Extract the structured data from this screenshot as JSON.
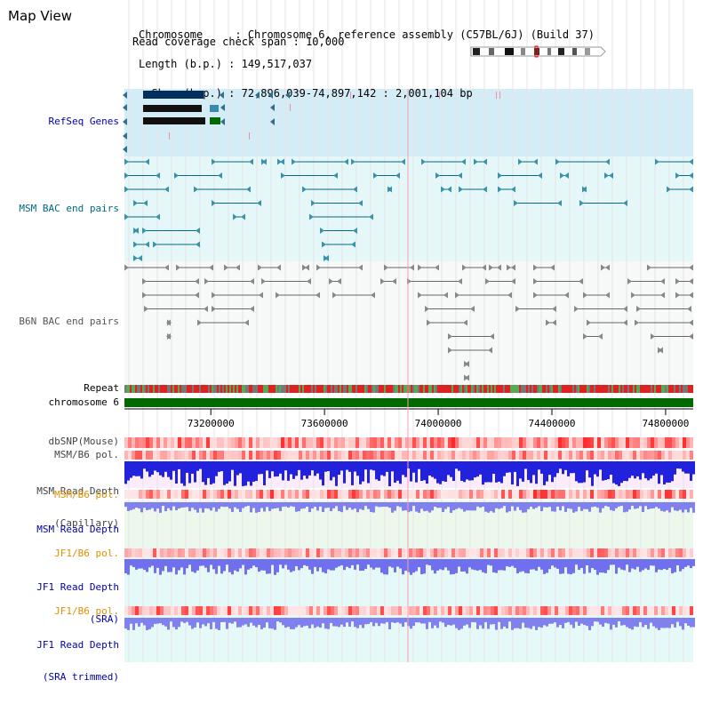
{
  "app": {
    "title": "Map View"
  },
  "info": {
    "chromosome_line": "Chromosome     : Chromosome 6, reference assembly (C57BL/6J) (Build 37)",
    "length_line": "Length (b.p.) : 149,517,037",
    "show_line": "  Show (b.p.) : 72,896,039-74,897,142 : 2,001,104 bp",
    "coverage_line": "Read coverage check span : 10,000"
  },
  "tracks": {
    "refseq": "RefSeq Genes",
    "msm_bac": "MSM BAC end pairs",
    "b6n_bac": "B6N BAC end pairs",
    "repeat": "Repeat",
    "chromosome": "chromosome 6",
    "dbsnp": "dbSNP(Mouse)",
    "msm_b6_pol_1": "MSM/B6 pol.",
    "msm_depth_cap_1": "MSM Read Depth",
    "msm_depth_cap_2": "(Capillary)",
    "msm_b6_pol_2": "MSM/B6 pol.",
    "msm_depth_sra": "MSM Read Depth",
    "msm_depth_sra_2": "(SRA)",
    "jf1_b6_pol_1": "JF1/B6 pol.",
    "jf1_depth_1": "JF1 Read Depth",
    "jf1_depth_1b": "(SRA)",
    "jf1_b6_pol_2": "JF1/B6 pol.",
    "jf1_depth_2": "JF1 Read Depth",
    "jf1_depth_2b": "(SRA trimmed)"
  },
  "axis": {
    "ticks": [
      "73200000",
      "73600000",
      "74000000",
      "74400000",
      "74800000"
    ],
    "tick_values": [
      73200000,
      73600000,
      74000000,
      74400000,
      74800000
    ],
    "range": [
      72896039,
      74897142
    ]
  },
  "colors": {
    "refseq_bg": "#d3ecf6",
    "msm_bac_bg": "#e6f7f9",
    "cap_bg": "#fbecfb",
    "sra_bg": "#edf8ed",
    "jf1_bg": "#e6f9f9",
    "label_blue": "#0000aa",
    "label_teal": "#006a7f",
    "label_orange": "#e09000",
    "label_gray": "#555555",
    "dark_navy": "#002f5f",
    "chrom_green": "#006a00"
  }
}
